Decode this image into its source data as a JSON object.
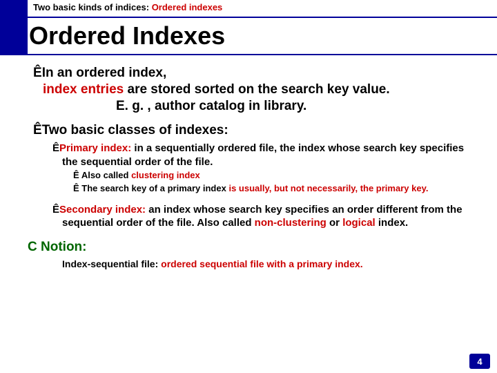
{
  "header": {
    "prefix": "Two basic kinds of indices: ",
    "highlight": "Ordered indexes"
  },
  "title": "Ordered Indexes",
  "b1": {
    "line1": "In an ordered index,",
    "line2_a": "index entries",
    "line2_b": " are stored sorted on the search key value.",
    "line3": "E. g. , author catalog in library."
  },
  "b2": {
    "head": "Two basic classes of indexes:",
    "primary_label": "Primary index:",
    "primary_body": " in a sequentially ordered file, the index whose search key specifies the sequential order of the file.",
    "p_sub1_a": "Also called ",
    "p_sub1_b": "clustering index",
    "p_sub2_a": "The search key of a primary index ",
    "p_sub2_b": "is usually, but not necessarily, the primary key.",
    "secondary_label": "Secondary index:",
    "secondary_body_a": " an index whose search key specifies an order different from the sequential order of the file.  Also called ",
    "secondary_body_b": "non-clustering",
    "secondary_body_c": " or ",
    "secondary_body_d": "logical",
    "secondary_body_e": " index."
  },
  "notion": {
    "label": "Notion:",
    "body_a": "Index-sequential file: ",
    "body_b": "ordered sequential file with a primary index."
  },
  "pagenum": "4",
  "glyphs": {
    "arrow": "Ê",
    "hand": "C"
  },
  "colors": {
    "blue": "#000099",
    "red": "#cc0000",
    "green": "#006600"
  }
}
